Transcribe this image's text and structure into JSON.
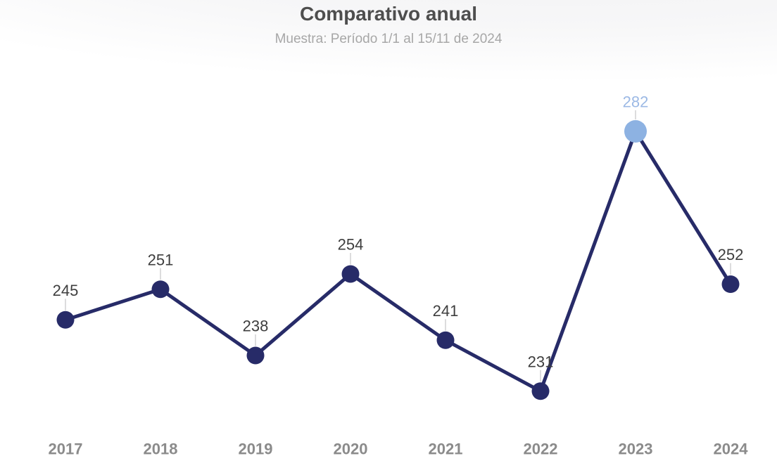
{
  "page": {
    "title": "Comparativo anual",
    "subtitle": "Muestra: Período 1/1 al 15/11 de 2024"
  },
  "chart_data": {
    "type": "line",
    "title": "Comparativo anual",
    "subtitle": "Muestra: Período 1/1 al 15/11 de 2024",
    "categories": [
      "2017",
      "2018",
      "2019",
      "2020",
      "2021",
      "2022",
      "2023",
      "2024"
    ],
    "values": [
      245,
      251,
      238,
      254,
      241,
      231,
      282,
      252
    ],
    "highlight_index": 6,
    "highlight_category": "2023",
    "highlight_value": 282,
    "xlabel": "",
    "ylabel": "",
    "ylim": [
      225,
      290
    ],
    "grid": false,
    "legend_position": "none",
    "colors": {
      "line": "#272b68",
      "point": "#272b68",
      "highlight_point": "#8db2e2",
      "highlight_label": "#9cb9e5",
      "data_label": "#3e3e3e",
      "axis_label": "#8b8b8b",
      "connector": "#dcdcdd",
      "title": "#4e4e4e",
      "subtitle": "#a7a7a7"
    }
  }
}
